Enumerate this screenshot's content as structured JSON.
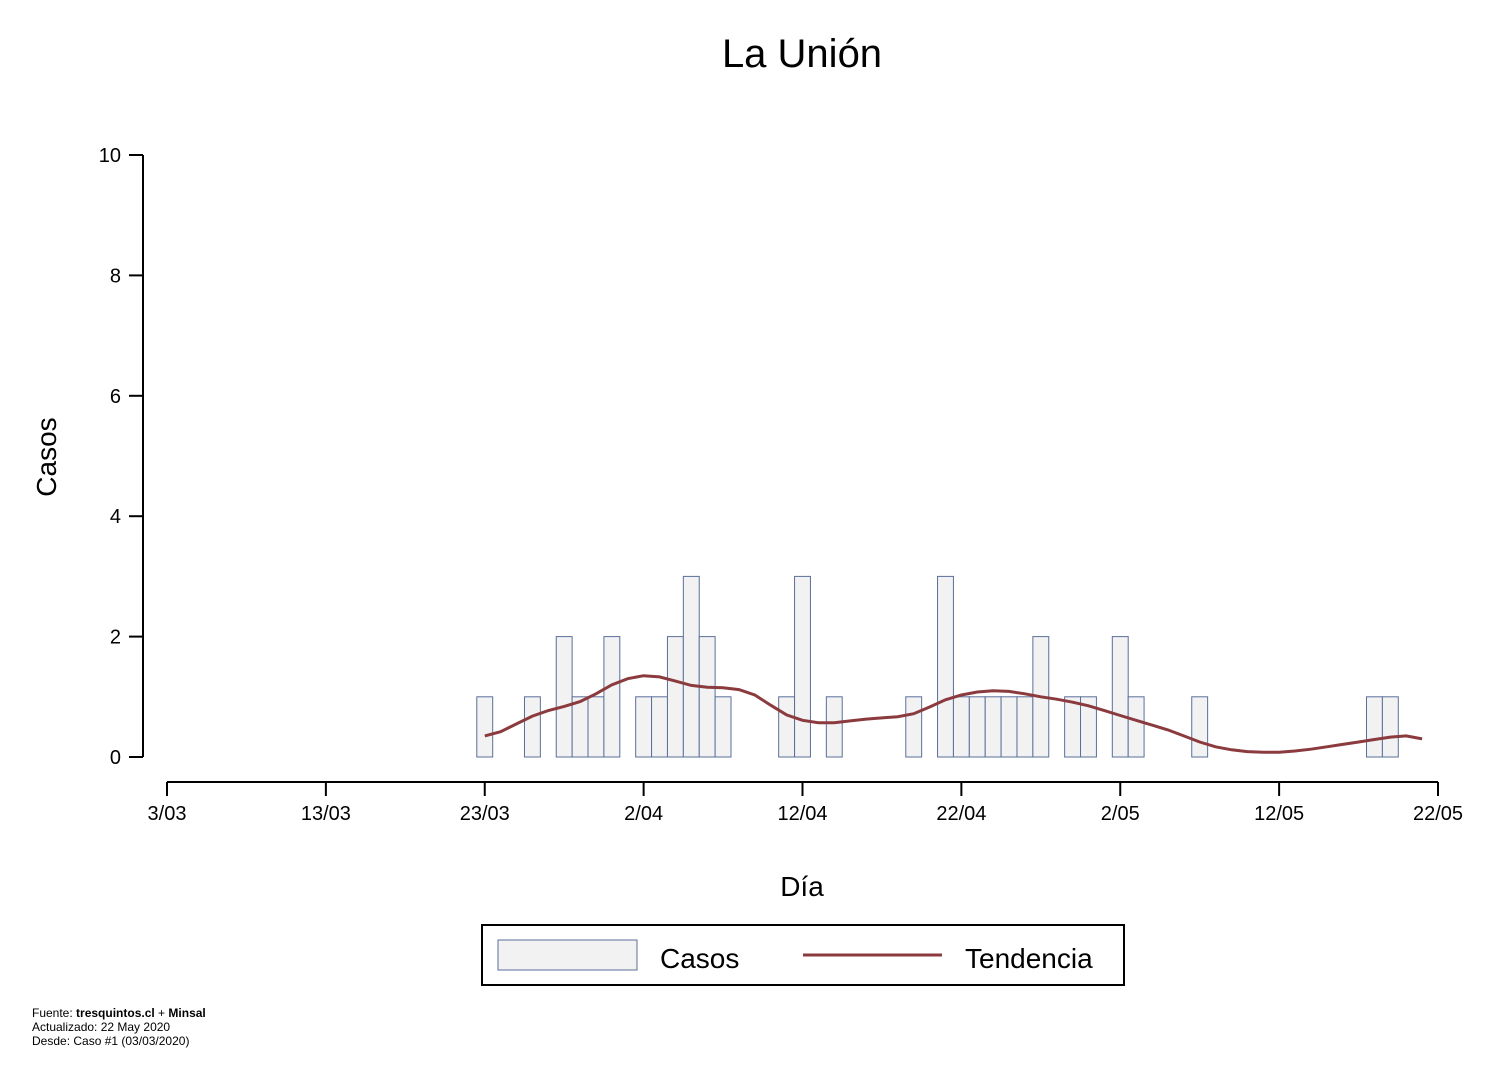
{
  "chart_data": {
    "type": "bar",
    "title": "La Unión",
    "xlabel": "Día",
    "ylabel": "Casos",
    "ylim": [
      0,
      10
    ],
    "yticks": [
      0,
      2,
      4,
      6,
      8,
      10
    ],
    "xlim": [
      0,
      80
    ],
    "xticks": [
      {
        "day": 0,
        "label": "3/03"
      },
      {
        "day": 10,
        "label": "13/03"
      },
      {
        "day": 20,
        "label": "23/03"
      },
      {
        "day": 30,
        "label": "2/04"
      },
      {
        "day": 40,
        "label": "12/04"
      },
      {
        "day": 50,
        "label": "22/04"
      },
      {
        "day": 60,
        "label": "2/05"
      },
      {
        "day": 70,
        "label": "12/05"
      },
      {
        "day": 80,
        "label": "22/05"
      }
    ],
    "series": [
      {
        "name": "Casos",
        "kind": "bar",
        "color": "#f2f2f2",
        "stroke": "#5a6f9a",
        "points": [
          {
            "day": 20,
            "value": 1
          },
          {
            "day": 23,
            "value": 1
          },
          {
            "day": 25,
            "value": 2
          },
          {
            "day": 26,
            "value": 1
          },
          {
            "day": 27,
            "value": 1
          },
          {
            "day": 28,
            "value": 2
          },
          {
            "day": 30,
            "value": 1
          },
          {
            "day": 31,
            "value": 1
          },
          {
            "day": 32,
            "value": 2
          },
          {
            "day": 33,
            "value": 3
          },
          {
            "day": 34,
            "value": 2
          },
          {
            "day": 35,
            "value": 1
          },
          {
            "day": 39,
            "value": 1
          },
          {
            "day": 40,
            "value": 3
          },
          {
            "day": 42,
            "value": 1
          },
          {
            "day": 47,
            "value": 1
          },
          {
            "day": 49,
            "value": 3
          },
          {
            "day": 50,
            "value": 1
          },
          {
            "day": 51,
            "value": 1
          },
          {
            "day": 52,
            "value": 1
          },
          {
            "day": 53,
            "value": 1
          },
          {
            "day": 54,
            "value": 1
          },
          {
            "day": 55,
            "value": 2
          },
          {
            "day": 57,
            "value": 1
          },
          {
            "day": 58,
            "value": 1
          },
          {
            "day": 60,
            "value": 2
          },
          {
            "day": 61,
            "value": 1
          },
          {
            "day": 65,
            "value": 1
          },
          {
            "day": 76,
            "value": 1
          },
          {
            "day": 77,
            "value": 1
          }
        ]
      },
      {
        "name": "Tendencia",
        "kind": "line",
        "color": "#8b3a3e",
        "points": [
          {
            "day": 20,
            "value": 0.35
          },
          {
            "day": 21,
            "value": 0.42
          },
          {
            "day": 22,
            "value": 0.55
          },
          {
            "day": 23,
            "value": 0.68
          },
          {
            "day": 24,
            "value": 0.77
          },
          {
            "day": 25,
            "value": 0.84
          },
          {
            "day": 26,
            "value": 0.92
          },
          {
            "day": 27,
            "value": 1.05
          },
          {
            "day": 28,
            "value": 1.2
          },
          {
            "day": 29,
            "value": 1.3
          },
          {
            "day": 30,
            "value": 1.35
          },
          {
            "day": 31,
            "value": 1.33
          },
          {
            "day": 32,
            "value": 1.26
          },
          {
            "day": 33,
            "value": 1.19
          },
          {
            "day": 34,
            "value": 1.16
          },
          {
            "day": 35,
            "value": 1.15
          },
          {
            "day": 36,
            "value": 1.12
          },
          {
            "day": 37,
            "value": 1.03
          },
          {
            "day": 38,
            "value": 0.86
          },
          {
            "day": 39,
            "value": 0.7
          },
          {
            "day": 40,
            "value": 0.61
          },
          {
            "day": 41,
            "value": 0.57
          },
          {
            "day": 42,
            "value": 0.57
          },
          {
            "day": 43,
            "value": 0.6
          },
          {
            "day": 44,
            "value": 0.63
          },
          {
            "day": 45,
            "value": 0.65
          },
          {
            "day": 46,
            "value": 0.67
          },
          {
            "day": 47,
            "value": 0.72
          },
          {
            "day": 48,
            "value": 0.83
          },
          {
            "day": 49,
            "value": 0.95
          },
          {
            "day": 50,
            "value": 1.03
          },
          {
            "day": 51,
            "value": 1.08
          },
          {
            "day": 52,
            "value": 1.1
          },
          {
            "day": 53,
            "value": 1.09
          },
          {
            "day": 54,
            "value": 1.05
          },
          {
            "day": 55,
            "value": 1.0
          },
          {
            "day": 56,
            "value": 0.96
          },
          {
            "day": 57,
            "value": 0.91
          },
          {
            "day": 58,
            "value": 0.85
          },
          {
            "day": 59,
            "value": 0.77
          },
          {
            "day": 60,
            "value": 0.69
          },
          {
            "day": 61,
            "value": 0.61
          },
          {
            "day": 62,
            "value": 0.53
          },
          {
            "day": 63,
            "value": 0.45
          },
          {
            "day": 64,
            "value": 0.35
          },
          {
            "day": 65,
            "value": 0.25
          },
          {
            "day": 66,
            "value": 0.17
          },
          {
            "day": 67,
            "value": 0.12
          },
          {
            "day": 68,
            "value": 0.09
          },
          {
            "day": 69,
            "value": 0.08
          },
          {
            "day": 70,
            "value": 0.08
          },
          {
            "day": 71,
            "value": 0.1
          },
          {
            "day": 72,
            "value": 0.13
          },
          {
            "day": 73,
            "value": 0.17
          },
          {
            "day": 74,
            "value": 0.21
          },
          {
            "day": 75,
            "value": 0.25
          },
          {
            "day": 76,
            "value": 0.29
          },
          {
            "day": 77,
            "value": 0.33
          },
          {
            "day": 78,
            "value": 0.35
          },
          {
            "day": 79,
            "value": 0.3
          }
        ]
      }
    ],
    "legend": {
      "position": "bottom-center",
      "entries": [
        {
          "label": "Casos",
          "kind": "bar"
        },
        {
          "label": "Tendencia",
          "kind": "line"
        }
      ]
    },
    "grid": false
  },
  "footer": {
    "source_prefix": "Fuente: ",
    "source_site": "tresquintos.cl",
    "source_join": " + ",
    "source_org": "Minsal",
    "updated": "Actualizado: 22 May 2020",
    "since": "Desde: Caso #1  (03/03/2020)"
  }
}
